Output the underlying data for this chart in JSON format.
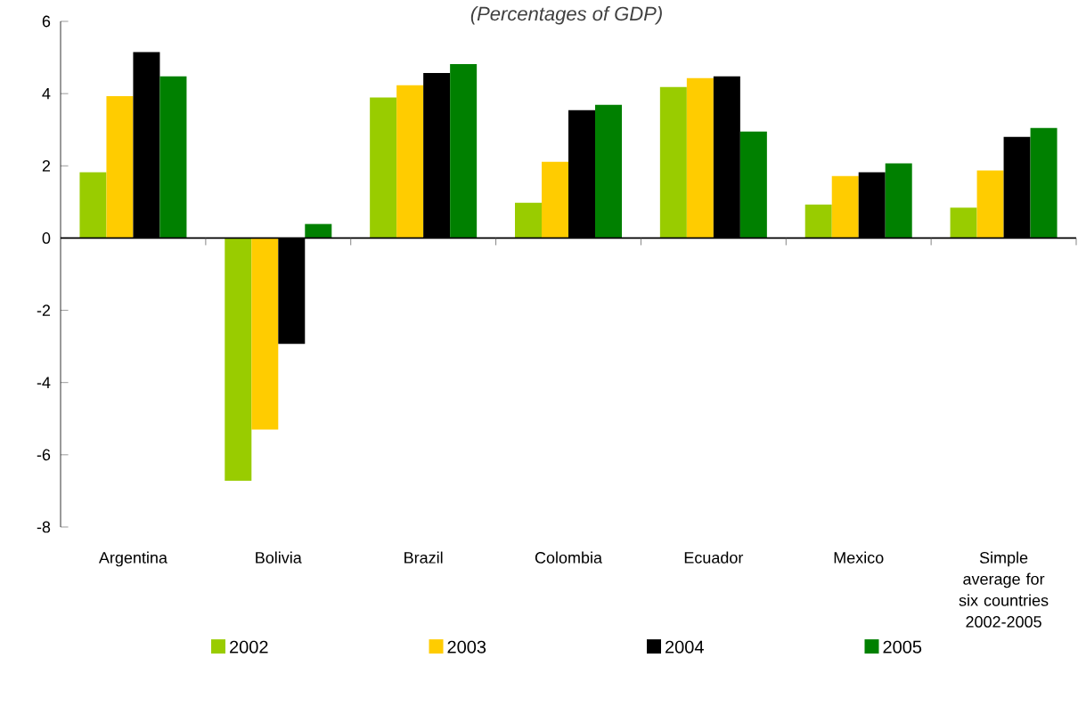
{
  "chart_data": {
    "type": "bar",
    "subtitle": "(Percentages of GDP)",
    "categories": [
      "Argentina",
      "Bolivia",
      "Brazil",
      "Colombia",
      "Ecuador",
      "Mexico",
      "Simple average for six countries 2002-2005"
    ],
    "series": [
      {
        "name": "2002",
        "color": "#99cc00",
        "values": [
          1.82,
          -6.72,
          3.89,
          0.98,
          4.18,
          0.93,
          0.84
        ]
      },
      {
        "name": "2003",
        "color": "#ffcc00",
        "values": [
          3.93,
          -5.3,
          4.23,
          2.11,
          4.43,
          1.72,
          1.87
        ]
      },
      {
        "name": "2004",
        "color": "#000000",
        "values": [
          5.15,
          -2.93,
          4.57,
          3.54,
          4.48,
          1.82,
          2.8
        ]
      },
      {
        "name": "2005",
        "color": "#008000",
        "values": [
          4.48,
          0.39,
          4.82,
          3.69,
          2.95,
          2.07,
          3.05
        ]
      }
    ],
    "ylim": [
      -8,
      6
    ],
    "yticks": [
      -8,
      -6,
      -4,
      -2,
      0,
      2,
      4,
      6
    ],
    "legend": "bottom"
  }
}
